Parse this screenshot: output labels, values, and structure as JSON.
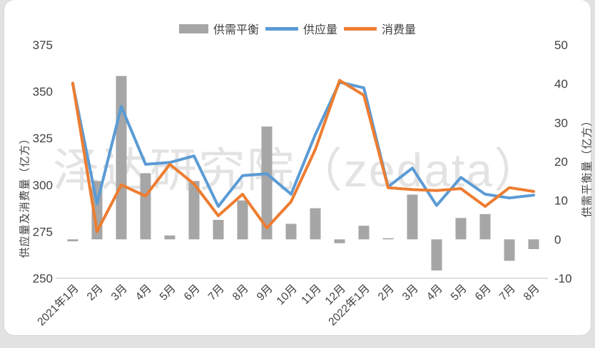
{
  "watermark": "泽达研究院（zedata）",
  "legend": {
    "items": [
      {
        "label": "供需平衡",
        "marker": "bar",
        "color": "#a6a6a6"
      },
      {
        "label": "供应量",
        "marker": "line",
        "color": "#5b9bd5"
      },
      {
        "label": "消费量",
        "marker": "line",
        "color": "#ed7d31"
      }
    ]
  },
  "left_axis": {
    "title": "供应量及消费量（亿方）",
    "min": 250,
    "max": 375,
    "ticks": [
      375,
      350,
      325,
      300,
      275,
      250
    ]
  },
  "right_axis": {
    "title": "供需平衡量（亿方）",
    "min": -10,
    "max": 50,
    "ticks": [
      50,
      40,
      30,
      20,
      10,
      0,
      -10
    ]
  },
  "chart_data": {
    "type": "combo-bar-line",
    "categories": [
      "2021年1月",
      "2月",
      "3月",
      "4月",
      "5月",
      "6月",
      "7月",
      "8月",
      "9月",
      "10月",
      "11月",
      "12月",
      "2022年1月",
      "2月",
      "3月",
      "4月",
      "5月",
      "6月",
      "7月",
      "8月"
    ],
    "series": [
      {
        "name": "供需平衡",
        "type": "bar",
        "axis": "right",
        "color": "#a6a6a6",
        "values": [
          -0.5,
          15,
          42,
          17,
          1,
          15,
          5,
          10,
          29,
          4,
          8,
          -1,
          3.5,
          0.3,
          11.5,
          -8,
          5.5,
          6.5,
          -5.5,
          -2.5
        ]
      },
      {
        "name": "供应量",
        "type": "line",
        "axis": "left",
        "color": "#5b9bd5",
        "values": [
          354,
          290,
          342,
          311,
          312,
          315.5,
          288.5,
          305,
          306,
          295,
          327,
          355,
          352,
          299,
          309,
          289,
          304,
          295,
          293,
          294.5
        ]
      },
      {
        "name": "消费量",
        "type": "line",
        "axis": "left",
        "color": "#ed7d31",
        "values": [
          354.5,
          275,
          300,
          294,
          311,
          300.5,
          283.5,
          295,
          277,
          291,
          319,
          356,
          348,
          298.5,
          297.5,
          297,
          298,
          288.5,
          298.5,
          296.5
        ]
      }
    ],
    "legend_position": "top",
    "grid": "off",
    "x_label_rotation": -45
  }
}
